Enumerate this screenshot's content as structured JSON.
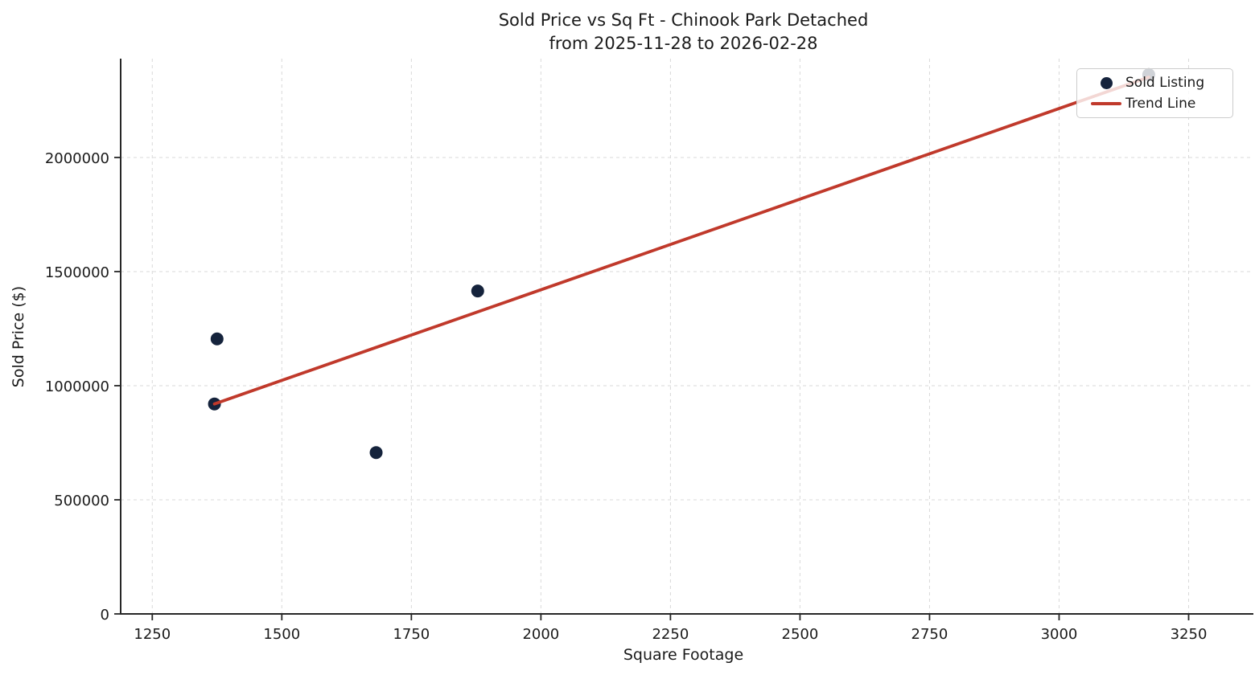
{
  "chart_data": {
    "type": "scatter",
    "title": "Sold Price vs Sq Ft - Chinook Park Detached",
    "subtitle": "from 2025-11-28 to 2026-02-28",
    "xlabel": "Square Footage",
    "ylabel": "Sold Price ($)",
    "xlim": [
      1189,
      3361
    ],
    "ylim": [
      0,
      2433000
    ],
    "x_ticks": [
      1250,
      1500,
      1750,
      2000,
      2250,
      2500,
      2750,
      3000,
      3250
    ],
    "y_ticks": [
      0,
      500000,
      1000000,
      1500000,
      2000000
    ],
    "grid": true,
    "legend": {
      "position": "upper right",
      "entries": [
        {
          "label": "Sold Listing",
          "marker": "dot"
        },
        {
          "label": "Trend Line",
          "marker": "line"
        }
      ]
    },
    "series": [
      {
        "name": "Sold Listing",
        "type": "scatter",
        "color": "#15233C",
        "points": [
          {
            "x": 1375,
            "y": 1205000
          },
          {
            "x": 1370,
            "y": 920000
          },
          {
            "x": 1682,
            "y": 707000
          },
          {
            "x": 1878,
            "y": 1415000
          },
          {
            "x": 3173,
            "y": 2363000
          }
        ]
      },
      {
        "name": "Trend Line",
        "type": "line",
        "color": "#C0392B",
        "points": [
          {
            "x": 1370,
            "y": 920000
          },
          {
            "x": 3173,
            "y": 2352000
          }
        ]
      }
    ],
    "colors": {
      "scatter": "#15233C",
      "trend": "#C0392B",
      "grid": "#D9D9D9",
      "spine": "#262626",
      "text": "#1A1A1A"
    }
  }
}
